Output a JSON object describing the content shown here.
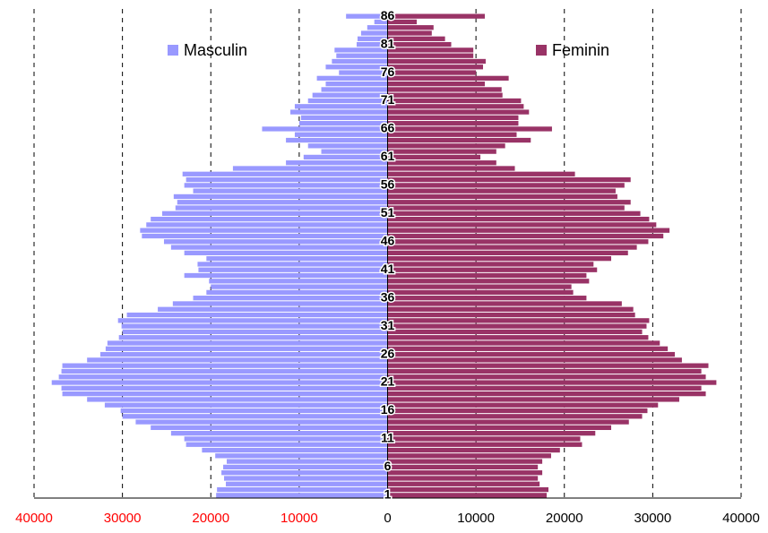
{
  "chart_data": {
    "type": "pyramid",
    "categories": [
      "1",
      null,
      null,
      null,
      null,
      "6",
      null,
      null,
      null,
      null,
      "11",
      null,
      null,
      null,
      null,
      "16",
      null,
      null,
      null,
      null,
      "21",
      null,
      null,
      null,
      null,
      "26",
      null,
      null,
      null,
      null,
      "31",
      null,
      null,
      null,
      null,
      "36",
      null,
      null,
      null,
      null,
      "41",
      null,
      null,
      null,
      null,
      "46",
      null,
      null,
      null,
      null,
      "51",
      null,
      null,
      null,
      null,
      "56",
      null,
      null,
      null,
      null,
      "61",
      null,
      null,
      null,
      null,
      "66",
      null,
      null,
      null,
      null,
      "71",
      null,
      null,
      null,
      null,
      "76",
      null,
      null,
      null,
      null,
      "81",
      null,
      null,
      null,
      null,
      "86"
    ],
    "series": [
      {
        "name": "Masculin",
        "color": "#9999ff",
        "side": "left",
        "values": [
          19400,
          19300,
          18300,
          18500,
          18800,
          18600,
          18200,
          19500,
          21000,
          22800,
          23000,
          24500,
          26800,
          28500,
          30000,
          30200,
          32000,
          34000,
          36800,
          36900,
          38000,
          37200,
          36900,
          36800,
          34000,
          32500,
          31900,
          31700,
          30400,
          30000,
          30100,
          30500,
          29500,
          26000,
          24300,
          22000,
          20500,
          20000,
          20200,
          23000,
          21400,
          21500,
          20500,
          23000,
          24500,
          25300,
          27800,
          28000,
          27300,
          26800,
          25500,
          24000,
          23800,
          24200,
          22000,
          23000,
          22800,
          23200,
          17500,
          11500,
          9500,
          7500,
          9000,
          11500,
          10500,
          14200,
          10000,
          9800,
          11000,
          10500,
          9000,
          8500,
          7500,
          7000,
          8000,
          5500,
          7000,
          6300,
          5800,
          6000,
          3500,
          3400,
          3000,
          2300,
          1500,
          4700
        ]
      },
      {
        "name": "Feminin",
        "color": "#993366",
        "side": "right",
        "values": [
          18000,
          18200,
          17200,
          17000,
          17500,
          17000,
          17500,
          18500,
          19500,
          22000,
          21800,
          23500,
          25300,
          27300,
          28800,
          29400,
          30600,
          33000,
          36000,
          35500,
          37200,
          36000,
          35500,
          36300,
          33300,
          32500,
          31700,
          30800,
          29500,
          28800,
          29300,
          29600,
          28000,
          27800,
          26500,
          22500,
          21000,
          20800,
          22800,
          22500,
          23700,
          23300,
          25300,
          27200,
          28200,
          29500,
          31200,
          31900,
          30400,
          29600,
          28600,
          26800,
          27500,
          26000,
          25800,
          26800,
          27500,
          21200,
          14400,
          12300,
          10500,
          12300,
          13300,
          16200,
          14600,
          18600,
          14800,
          14800,
          16000,
          15400,
          15100,
          13000,
          12900,
          11000,
          13700,
          10000,
          10800,
          11100,
          9700,
          9700,
          7200,
          6500,
          5000,
          5200,
          3300,
          11000
        ]
      }
    ],
    "xlim": [
      -40000,
      40000
    ],
    "xticks": [
      {
        "value": -40000,
        "label": "40000"
      },
      {
        "value": -30000,
        "label": "30000"
      },
      {
        "value": -20000,
        "label": "20000"
      },
      {
        "value": -10000,
        "label": "10000"
      },
      0,
      10000,
      20000,
      30000,
      40000
    ],
    "left_tick_color": "#ff0000",
    "grid": true
  }
}
